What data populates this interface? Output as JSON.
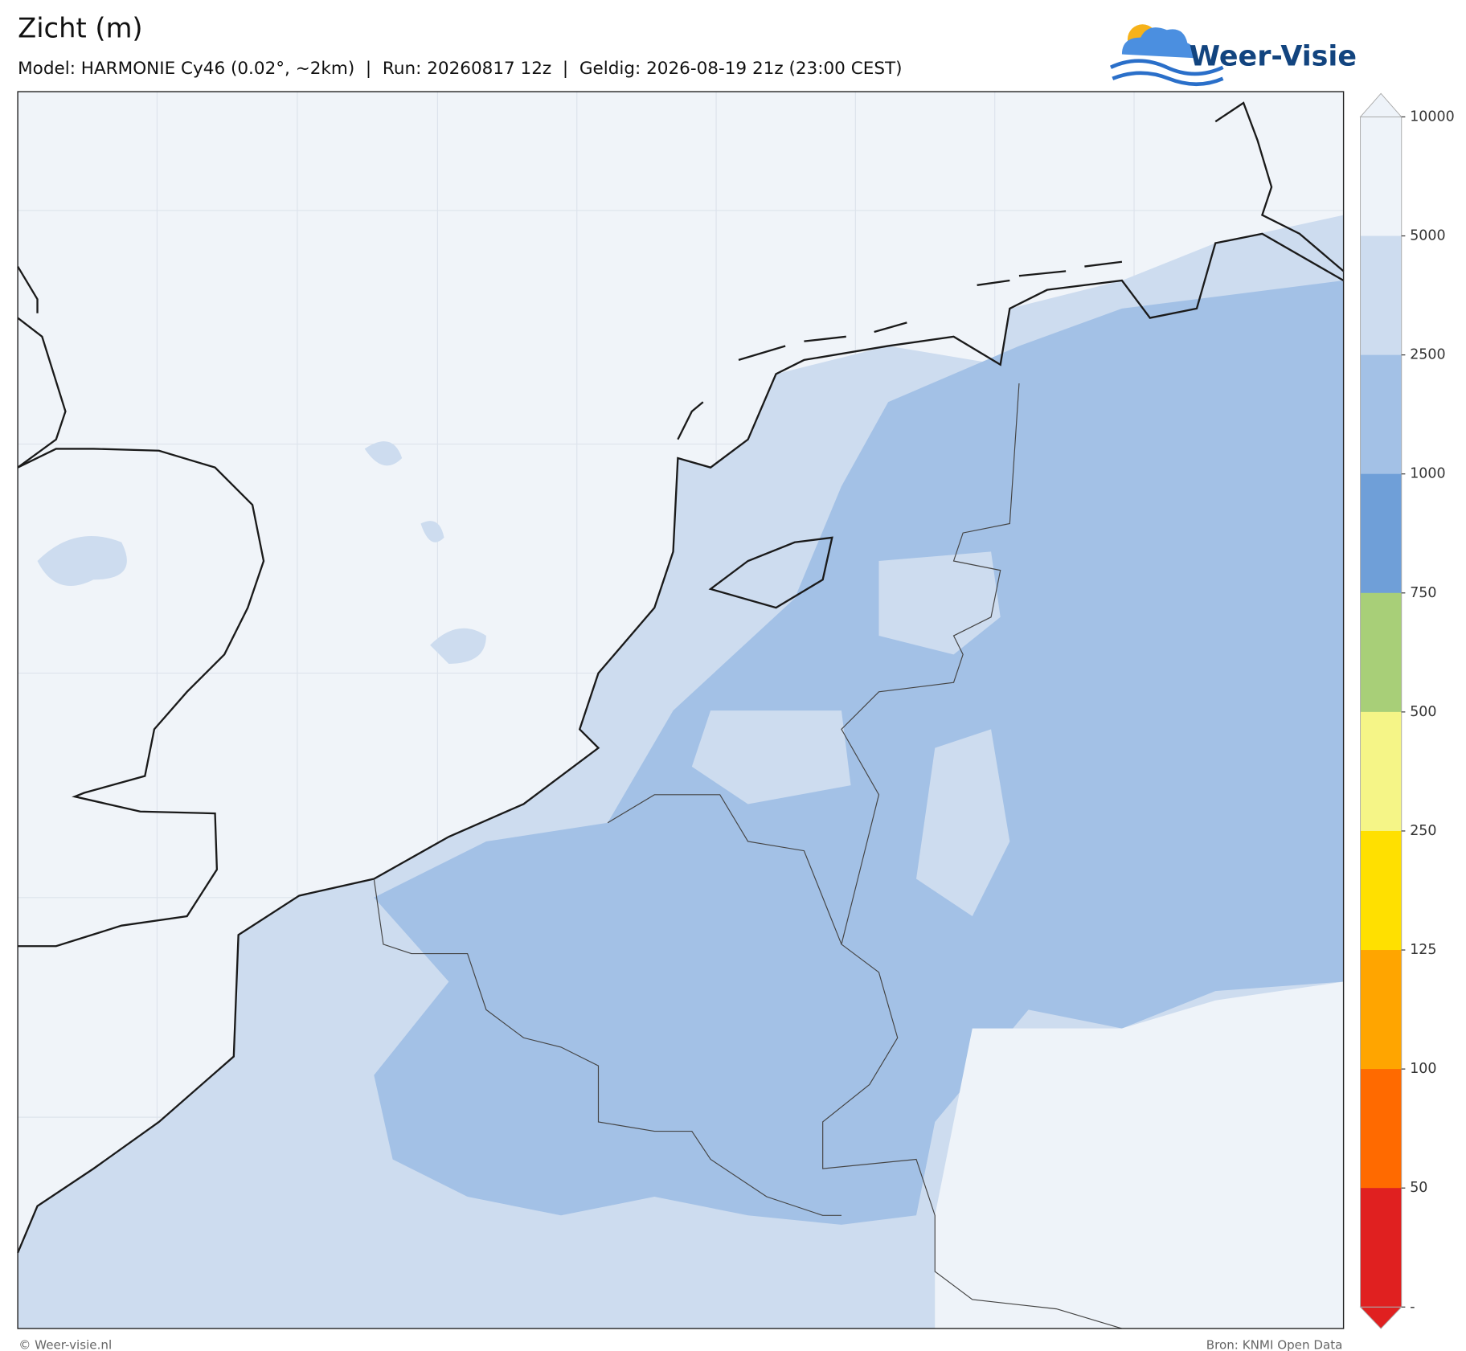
{
  "header": {
    "title": "Zicht (m)",
    "subtitle": "Model: HARMONIE Cy46 (0.02°, ~2km)  |  Run: 20260817 12z  |  Geldig: 2026-08-19 21z (23:00 CEST)",
    "logo": "Weer-Visie"
  },
  "colorbar": {
    "ticks": [
      10000,
      5000,
      2500,
      1000,
      750,
      500,
      250,
      125,
      100,
      50,
      "-"
    ],
    "colors": [
      "#eef3f9",
      "#cddcef",
      "#a3c1e6",
      "#6f9fd8",
      "#a8cf78",
      "#f5f587",
      "#ffe000",
      "#ffa500",
      "#ff6a00",
      "#e02020"
    ]
  },
  "footer": {
    "credit": "© Weer-visie.nl",
    "source": "Bron: KNMI Open Data"
  }
}
